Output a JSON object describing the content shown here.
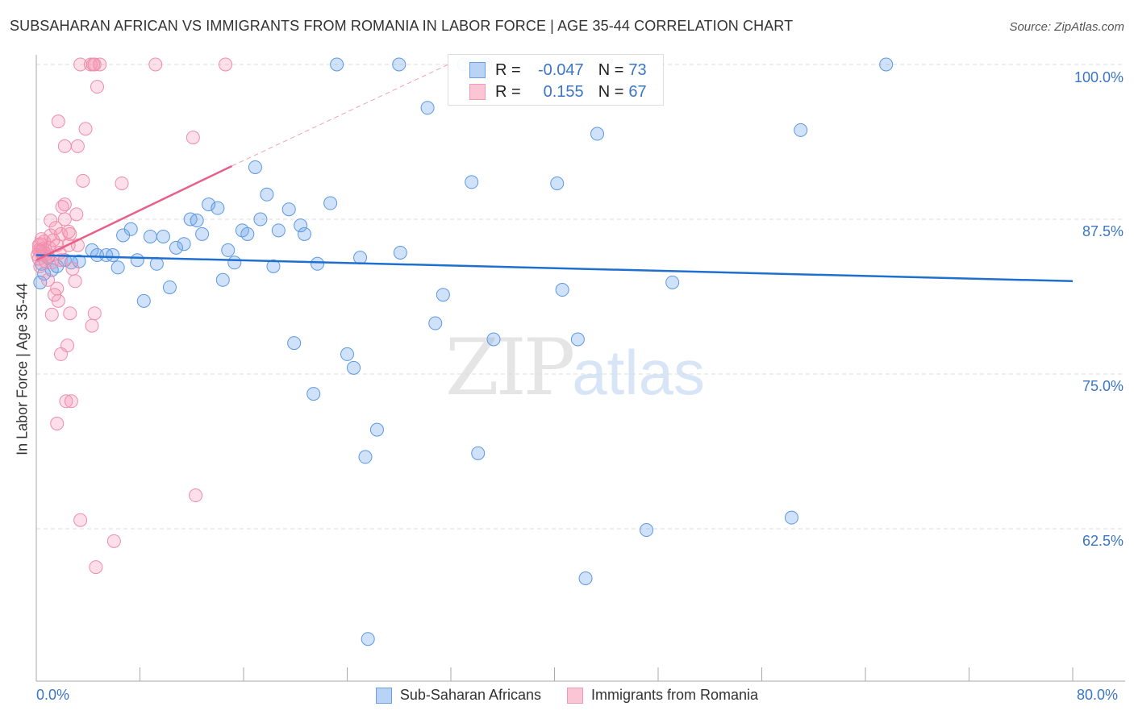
{
  "header": {
    "title": "SUBSAHARAN AFRICAN VS IMMIGRANTS FROM ROMANIA IN LABOR FORCE | AGE 35-44 CORRELATION CHART",
    "source": "Source: ZipAtlas.com"
  },
  "watermark": {
    "zip": "ZIP",
    "atlas": "atlas"
  },
  "legend": {
    "rows": [
      {
        "r_label": "R =",
        "r_value": "-0.047",
        "n_label": "N =",
        "n_value": "73"
      },
      {
        "r_label": "R =",
        "r_value": "0.155",
        "n_label": "N =",
        "n_value": "67"
      }
    ]
  },
  "chart_data": {
    "type": "scatter",
    "title": "SUBSAHARAN AFRICAN VS IMMIGRANTS FROM ROMANIA IN LABOR FORCE | AGE 35-44 CORRELATION CHART",
    "xlabel": "",
    "ylabel": "In Labor Force | Age 35-44",
    "xlim": [
      0,
      80
    ],
    "ylim": [
      50,
      100
    ],
    "x_tick_labels": [
      "0.0%",
      "80.0%"
    ],
    "y_ticks": [
      100,
      87.5,
      75,
      62.5
    ],
    "y_tick_labels": [
      "100.0%",
      "87.5%",
      "75.0%",
      "62.5%"
    ],
    "grid": true,
    "legend_placement": "bottom-center",
    "colors": {
      "blue": "#3f86dd",
      "pink": "#ee7fa2",
      "blue_line": "#1f6fd1",
      "pink_line": "#e8608a"
    },
    "series": [
      {
        "name": "Sub-Saharan Africans",
        "color": "blue",
        "r": -0.047,
        "n": 73,
        "trend": [
          [
            0,
            84.6
          ],
          [
            80,
            82.5
          ]
        ],
        "points": [
          [
            23.2,
            100
          ],
          [
            28.0,
            100
          ],
          [
            65.6,
            100
          ],
          [
            33.0,
            100
          ],
          [
            34.7,
            100
          ],
          [
            30.2,
            96.5
          ],
          [
            43.3,
            94.4
          ],
          [
            59.0,
            94.7
          ],
          [
            16.9,
            91.7
          ],
          [
            33.6,
            90.5
          ],
          [
            40.2,
            90.4
          ],
          [
            17.8,
            89.5
          ],
          [
            22.7,
            88.8
          ],
          [
            13.3,
            88.7
          ],
          [
            14.0,
            88.4
          ],
          [
            19.5,
            88.3
          ],
          [
            11.9,
            87.5
          ],
          [
            12.4,
            87.4
          ],
          [
            17.3,
            87.5
          ],
          [
            20.4,
            87.0
          ],
          [
            7.3,
            86.7
          ],
          [
            6.7,
            86.2
          ],
          [
            8.8,
            86.1
          ],
          [
            9.8,
            86.1
          ],
          [
            15.9,
            86.6
          ],
          [
            16.3,
            86.3
          ],
          [
            18.7,
            86.6
          ],
          [
            20.7,
            86.3
          ],
          [
            12.8,
            86.3
          ],
          [
            11.4,
            85.5
          ],
          [
            10.8,
            85.2
          ],
          [
            4.3,
            85.0
          ],
          [
            14.8,
            85.0
          ],
          [
            4.7,
            84.6
          ],
          [
            5.4,
            84.6
          ],
          [
            5.9,
            84.6
          ],
          [
            2.2,
            84.2
          ],
          [
            3.3,
            84.1
          ],
          [
            25.0,
            84.4
          ],
          [
            28.1,
            84.8
          ],
          [
            7.8,
            84.2
          ],
          [
            9.3,
            83.9
          ],
          [
            15.3,
            84.0
          ],
          [
            18.3,
            83.7
          ],
          [
            21.7,
            83.9
          ],
          [
            6.3,
            83.6
          ],
          [
            1.2,
            83.4
          ],
          [
            0.6,
            83.1
          ],
          [
            14.4,
            82.6
          ],
          [
            10.3,
            82.0
          ],
          [
            40.6,
            81.8
          ],
          [
            49.1,
            82.4
          ],
          [
            31.4,
            81.4
          ],
          [
            8.3,
            80.9
          ],
          [
            30.8,
            79.1
          ],
          [
            35.3,
            77.8
          ],
          [
            41.8,
            77.8
          ],
          [
            19.9,
            77.5
          ],
          [
            24.0,
            76.6
          ],
          [
            24.5,
            75.5
          ],
          [
            21.4,
            73.4
          ],
          [
            26.3,
            70.5
          ],
          [
            25.4,
            68.3
          ],
          [
            34.1,
            68.6
          ],
          [
            58.3,
            63.4
          ],
          [
            47.1,
            62.4
          ],
          [
            42.4,
            58.5
          ],
          [
            25.6,
            53.6
          ],
          [
            0.3,
            82.4
          ],
          [
            1.6,
            83.7
          ],
          [
            2.7,
            84.0
          ],
          [
            0.9,
            84.4
          ],
          [
            0.4,
            83.9
          ]
        ]
      },
      {
        "name": "Immigrants from Romania",
        "color": "pink",
        "r": 0.155,
        "n": 67,
        "trend": [
          [
            0,
            84.2
          ],
          [
            15.1,
            91.8
          ]
        ],
        "trend_extension": [
          [
            15.1,
            91.8
          ],
          [
            31.8,
            100
          ]
        ],
        "points": [
          [
            3.4,
            100
          ],
          [
            4.2,
            100
          ],
          [
            4.5,
            100
          ],
          [
            4.9,
            100
          ],
          [
            4.4,
            100
          ],
          [
            9.2,
            100
          ],
          [
            14.6,
            100
          ],
          [
            4.7,
            98.2
          ],
          [
            1.7,
            95.4
          ],
          [
            3.8,
            94.8
          ],
          [
            2.2,
            93.4
          ],
          [
            3.2,
            93.4
          ],
          [
            12.1,
            94.1
          ],
          [
            3.6,
            90.6
          ],
          [
            6.6,
            90.4
          ],
          [
            2.2,
            88.7
          ],
          [
            2.0,
            88.5
          ],
          [
            3.1,
            87.9
          ],
          [
            1.1,
            87.4
          ],
          [
            2.2,
            87.5
          ],
          [
            1.9,
            86.3
          ],
          [
            1.1,
            86.2
          ],
          [
            2.6,
            86.3
          ],
          [
            3.2,
            85.4
          ],
          [
            0.6,
            85.7
          ],
          [
            0.2,
            85.4
          ],
          [
            0.4,
            84.9
          ],
          [
            0.9,
            84.5
          ],
          [
            0.1,
            84.6
          ],
          [
            1.2,
            84.0
          ],
          [
            1.9,
            84.2
          ],
          [
            2.8,
            83.5
          ],
          [
            3.0,
            82.5
          ],
          [
            0.9,
            82.6
          ],
          [
            1.6,
            81.9
          ],
          [
            1.4,
            81.4
          ],
          [
            1.7,
            80.9
          ],
          [
            1.2,
            79.8
          ],
          [
            2.6,
            79.9
          ],
          [
            4.5,
            79.9
          ],
          [
            4.3,
            78.9
          ],
          [
            2.4,
            77.3
          ],
          [
            1.9,
            76.6
          ],
          [
            2.3,
            72.8
          ],
          [
            2.7,
            72.8
          ],
          [
            1.6,
            71.0
          ],
          [
            12.3,
            65.2
          ],
          [
            3.4,
            63.2
          ],
          [
            6.0,
            61.5
          ],
          [
            4.6,
            59.4
          ],
          [
            0.3,
            83.7
          ],
          [
            0.6,
            84.8
          ],
          [
            2.5,
            85.4
          ],
          [
            1.6,
            85.4
          ],
          [
            0.3,
            85.5
          ],
          [
            2.5,
            86.5
          ],
          [
            1.5,
            86.8
          ],
          [
            0.2,
            84.3
          ],
          [
            0.5,
            85.1
          ],
          [
            0.8,
            84.7
          ],
          [
            0.3,
            84.9
          ],
          [
            1.0,
            85.2
          ],
          [
            0.7,
            84.1
          ],
          [
            1.3,
            85.8
          ],
          [
            0.4,
            85.9
          ],
          [
            1.8,
            84.8
          ],
          [
            0.2,
            85.0
          ]
        ]
      }
    ]
  }
}
